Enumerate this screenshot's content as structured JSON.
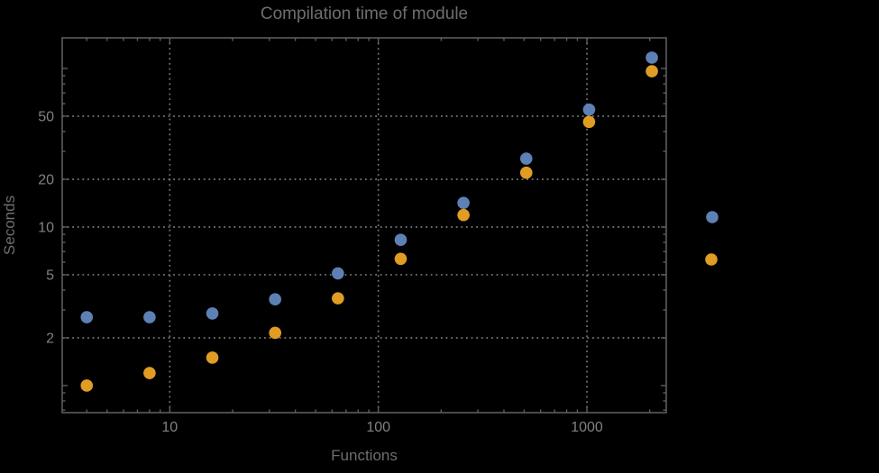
{
  "title": "Compilation time of module",
  "axes": {
    "x_label": "Functions",
    "y_label": "Seconds"
  },
  "chart_data": {
    "type": "scatter",
    "title": "Compilation time of module",
    "xlabel": "Functions",
    "ylabel": "Seconds",
    "xscale": "log",
    "yscale": "log",
    "xlim": [
      3.05,
      2400
    ],
    "ylim": [
      0.675,
      156
    ],
    "grid": true,
    "grid_style": "dotted",
    "x": [
      4,
      8,
      16,
      32,
      64,
      128,
      256,
      512,
      1024,
      2048
    ],
    "series": [
      {
        "name": "series-1-blue",
        "color": "#5e81b5",
        "values": [
          2.7,
          2.7,
          2.85,
          3.5,
          5.1,
          8.3,
          14.2,
          27,
          55,
          117
        ]
      },
      {
        "name": "series-2-orange",
        "color": "#e19c24",
        "values": [
          1.0,
          1.2,
          1.5,
          2.15,
          3.55,
          6.3,
          11.9,
          22,
          46,
          96
        ]
      }
    ],
    "x_ticks": [
      10,
      100,
      1000
    ],
    "x_tick_labels": [
      "10",
      "100",
      "1000"
    ],
    "y_ticks": [
      2,
      5,
      10,
      20,
      50
    ],
    "y_tick_labels": [
      "2",
      "5",
      "10",
      "20",
      "50"
    ],
    "y_unlabeled_major_ticks": [
      1,
      100
    ],
    "legend_position": "right",
    "legend_markers": [
      {
        "name": "legend-marker-1",
        "color": "#5e81b5",
        "label": ""
      },
      {
        "name": "legend-marker-2",
        "color": "#e19c24",
        "label": ""
      }
    ]
  },
  "style": {
    "background": "#000000",
    "frame_color": "#5d5d5d",
    "grid_color": "#787878",
    "tick_label_color": "#828282",
    "title_color": "#6e6e6e",
    "axis_label_color": "#6e6e6e",
    "point_radius": 6.8
  }
}
